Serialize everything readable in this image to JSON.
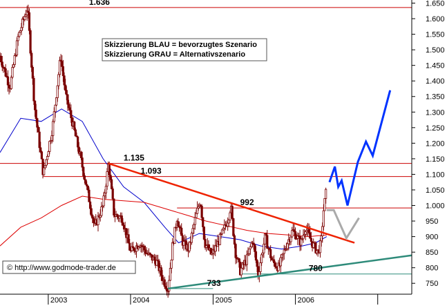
{
  "chart_data": {
    "type": "line",
    "subtype": "ohlc-price-chart",
    "ylim": [
      715,
      1660
    ],
    "y_ticks": [
      750,
      800,
      850,
      900,
      950,
      1000,
      1050,
      1100,
      1150,
      1200,
      1250,
      1300,
      1350,
      1400,
      1450,
      1500,
      1550,
      1600,
      1650
    ],
    "y_tick_labels": [
      "750",
      "800",
      "850",
      "900",
      "950",
      "1.000",
      "1.050",
      "1.100",
      "1.150",
      "1.200",
      "1.250",
      "1.300",
      "1.350",
      "1.400",
      "1.450",
      "1.500",
      "1.550",
      "1.600",
      "1.650"
    ],
    "xlim": [
      "2002-06-01",
      "2007-06-01"
    ],
    "x_ticks": [
      "2003-01-01",
      "2004-01-01",
      "2005-01-01",
      "2006-01-01",
      "2007-01-01"
    ],
    "x_tick_labels": [
      "2003",
      "2004",
      "2005",
      "2006",
      ""
    ],
    "price_anchors": [
      [
        "2002-06-01",
        1480
      ],
      [
        "2002-07-15",
        1380
      ],
      [
        "2002-08-20",
        1540
      ],
      [
        "2002-10-01",
        1636
      ],
      [
        "2002-11-01",
        1320
      ],
      [
        "2002-12-10",
        1100
      ],
      [
        "2003-01-20",
        1250
      ],
      [
        "2003-02-25",
        1480
      ],
      [
        "2003-03-20",
        1350
      ],
      [
        "2003-04-20",
        1260
      ],
      [
        "2003-05-25",
        1150
      ],
      [
        "2003-07-01",
        1020
      ],
      [
        "2003-07-25",
        930
      ],
      [
        "2003-09-01",
        1000
      ],
      [
        "2003-09-25",
        1135
      ],
      [
        "2003-10-20",
        970
      ],
      [
        "2003-11-25",
        960
      ],
      [
        "2004-01-01",
        850
      ],
      [
        "2004-02-10",
        880
      ],
      [
        "2004-03-20",
        840
      ],
      [
        "2004-04-25",
        820
      ],
      [
        "2004-05-25",
        760
      ],
      [
        "2004-06-15",
        733
      ],
      [
        "2004-07-05",
        870
      ],
      [
        "2004-07-25",
        960
      ],
      [
        "2004-08-20",
        880
      ],
      [
        "2004-09-15",
        860
      ],
      [
        "2004-10-15",
        960
      ],
      [
        "2004-11-05",
        1020
      ],
      [
        "2004-11-25",
        880
      ],
      [
        "2004-12-25",
        840
      ],
      [
        "2005-02-05",
        900
      ],
      [
        "2005-03-10",
        960
      ],
      [
        "2005-03-20",
        1000
      ],
      [
        "2005-04-10",
        850
      ],
      [
        "2005-05-01",
        790
      ],
      [
        "2005-06-01",
        830
      ],
      [
        "2005-06-25",
        890
      ],
      [
        "2005-07-20",
        780
      ],
      [
        "2005-08-20",
        900
      ],
      [
        "2005-09-20",
        820
      ],
      [
        "2005-10-20",
        800
      ],
      [
        "2005-11-20",
        870
      ],
      [
        "2005-12-20",
        920
      ],
      [
        "2006-01-25",
        880
      ],
      [
        "2006-02-15",
        930
      ],
      [
        "2006-03-15",
        880
      ],
      [
        "2006-04-10",
        850
      ],
      [
        "2006-04-25",
        880
      ],
      [
        "2006-05-05",
        980
      ],
      [
        "2006-05-20",
        1060
      ]
    ],
    "moving_averages": [
      {
        "color": "#0000cc",
        "points": [
          [
            "2002-06-01",
            1170
          ],
          [
            "2002-09-01",
            1280
          ],
          [
            "2002-12-01",
            1270
          ],
          [
            "2003-03-01",
            1310
          ],
          [
            "2003-06-01",
            1270
          ],
          [
            "2003-09-01",
            1150
          ],
          [
            "2003-12-01",
            1060
          ],
          [
            "2004-03-01",
            1010
          ],
          [
            "2004-06-01",
            930
          ],
          [
            "2004-08-01",
            880
          ],
          [
            "2004-11-01",
            910
          ],
          [
            "2005-02-01",
            900
          ],
          [
            "2005-05-01",
            890
          ],
          [
            "2005-08-01",
            870
          ],
          [
            "2005-11-01",
            860
          ],
          [
            "2006-02-01",
            870
          ],
          [
            "2006-04-01",
            880
          ],
          [
            "2006-05-20",
            900
          ]
        ]
      },
      {
        "color": "#dd0000",
        "points": [
          [
            "2002-06-01",
            870
          ],
          [
            "2002-09-01",
            930
          ],
          [
            "2002-12-01",
            960
          ],
          [
            "2003-03-01",
            1000
          ],
          [
            "2003-06-01",
            1030
          ],
          [
            "2003-09-01",
            1020
          ],
          [
            "2003-12-01",
            1015
          ],
          [
            "2004-03-01",
            1010
          ],
          [
            "2004-06-01",
            990
          ],
          [
            "2004-09-01",
            970
          ],
          [
            "2004-12-01",
            950
          ],
          [
            "2005-03-01",
            935
          ],
          [
            "2005-06-01",
            920
          ],
          [
            "2005-09-01",
            910
          ],
          [
            "2005-12-01",
            905
          ],
          [
            "2006-03-01",
            900
          ],
          [
            "2006-05-20",
            905
          ]
        ]
      }
    ],
    "horizontal_levels": [
      {
        "value": 1636,
        "label": "1.636",
        "x_start": "2002-06-01",
        "x_end": "2007-06-01",
        "label_at": "2003-07-01"
      },
      {
        "value": 1135,
        "label": "1.135",
        "x_start": "2002-06-01",
        "x_end": "2007-06-01",
        "label_at": "2003-12-01"
      },
      {
        "value": 1093,
        "label": "1.093",
        "x_start": "2002-12-10",
        "x_end": "2007-06-01",
        "label_at": "2004-02-15"
      },
      {
        "value": 992,
        "label": "992",
        "x_start": "2004-07-25",
        "x_end": "2007-06-01",
        "label_at": "2005-05-01"
      },
      {
        "value": 780,
        "label": "780",
        "x_start": "2005-05-01",
        "x_end": "2007-06-01",
        "label_at": "2006-03-01"
      },
      {
        "value": 733,
        "label": "733",
        "x_start": "2004-06-15",
        "x_end": "2005-01-01",
        "label_at": "2004-12-05"
      }
    ],
    "trendlines": [
      {
        "color": "#ee2200",
        "points": [
          [
            "2003-09-25",
            1135
          ],
          [
            "2006-09-20",
            880
          ]
        ]
      },
      {
        "color": "#2e8b7a",
        "points": [
          [
            "2004-06-15",
            733
          ],
          [
            "2007-06-01",
            840
          ]
        ]
      }
    ],
    "scenarios": [
      {
        "name": "bevorzugtes Szenario",
        "color": "#0033ff",
        "points": [
          [
            "2006-06-01",
            1075
          ],
          [
            "2006-06-25",
            1125
          ],
          [
            "2006-07-10",
            1060
          ],
          [
            "2006-07-25",
            1080
          ],
          [
            "2006-08-20",
            1000
          ],
          [
            "2006-10-05",
            1140
          ],
          [
            "2006-11-10",
            1205
          ],
          [
            "2006-12-10",
            1160
          ],
          [
            "2007-02-25",
            1370
          ]
        ]
      },
      {
        "name": "Alternativszenario",
        "color": "#aaaaaa",
        "points": [
          [
            "2006-05-20",
            985
          ],
          [
            "2006-06-20",
            985
          ],
          [
            "2006-08-15",
            895
          ],
          [
            "2006-10-10",
            960
          ]
        ]
      }
    ]
  },
  "annotations": {
    "line1": "Skizzierung BLAU = bevorzugtes Szenario",
    "line2": "Skizzierung GRAU = Alternativszenario"
  },
  "copyright": "© http://www.godmode-trader.de",
  "colors": {
    "candles": "#7a0000",
    "axis": "#000000",
    "levels": "#cc0000"
  }
}
